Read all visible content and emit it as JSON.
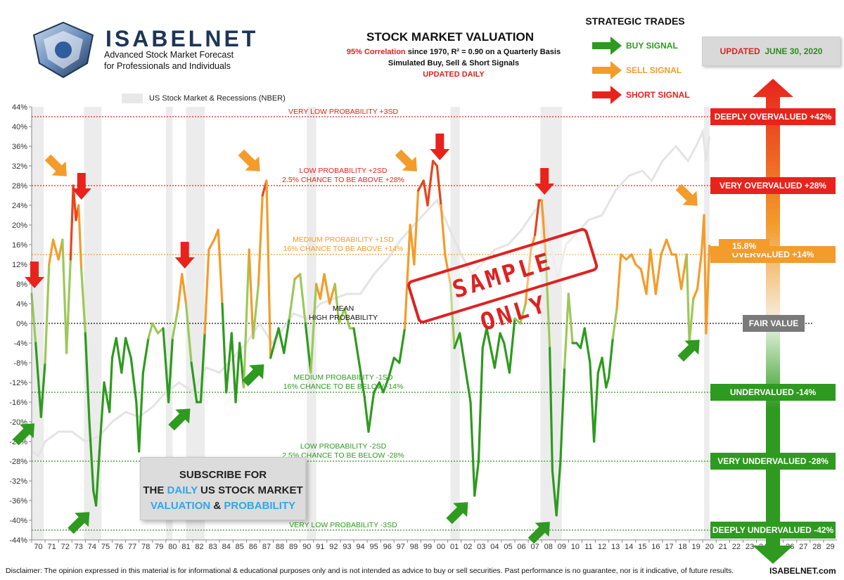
{
  "brand": {
    "name": "ISABELNET",
    "tagline_1": "Advanced Stock Market Forecast",
    "tagline_2": "for Professionals and Individuals"
  },
  "header": {
    "title": "STOCK MARKET VALUATION",
    "corr_red": "95% Correlation",
    "corr_rest": " since 1970, R² = 0.90 on a Quarterly Basis",
    "line2": "Simulated Buy, Sell & Short Signals",
    "line3": "UPDATED DAILY"
  },
  "strategic": {
    "title": "STRATEGIC TRADES",
    "buy": "BUY SIGNAL",
    "sell": "SELL SIGNAL",
    "short": "SHORT SIGNAL"
  },
  "updated": {
    "prefix": "UPDATED",
    "date": "JUNE 30, 2020"
  },
  "nber_label": "US Stock Market & Recessions (NBER)",
  "subscribe": {
    "line1": "SUBSCRIBE FOR",
    "the": "THE ",
    "daily": "DAILY",
    "us_stock": " US STOCK MARKET",
    "valuation": "VALUATION",
    "amp": " & ",
    "probability": "PROBABILITY"
  },
  "stamp": "SAMPLE ONLY",
  "disclaimer": "Disclaimer: The opinion expressed in this material is for informational & educational purposes only and is not intended as advice to buy or sell securities. Past performance is no guarantee, nor is it indicative, of future results.",
  "site": "ISABELNET.com",
  "current_value": "15.8%",
  "colors": {
    "buy": "#2e9a1f",
    "sell": "#f39c2b",
    "short": "#e8231c",
    "fair": "#7a7a7a",
    "market_line": "#e4e4e4",
    "recession": "#ececec"
  },
  "chart_data": {
    "type": "line",
    "ylim": [
      -44,
      44
    ],
    "y_ticks": [
      "44%",
      "40%",
      "36%",
      "32%",
      "28%",
      "24%",
      "20%",
      "16%",
      "12%",
      "8%",
      "4%",
      "0%",
      "-4%",
      "-8%",
      "-12%",
      "-16%",
      "-20%",
      "-24%",
      "-28%",
      "-32%",
      "-36%",
      "-40%",
      "-44%"
    ],
    "x_ticks": [
      "70",
      "71",
      "72",
      "73",
      "74",
      "75",
      "76",
      "77",
      "78",
      "79",
      "80",
      "81",
      "82",
      "83",
      "84",
      "85",
      "86",
      "87",
      "88",
      "89",
      "90",
      "91",
      "92",
      "93",
      "94",
      "95",
      "96",
      "97",
      "98",
      "99",
      "00",
      "01",
      "02",
      "03",
      "04",
      "05",
      "06",
      "07",
      "08",
      "09",
      "10",
      "11",
      "12",
      "13",
      "14",
      "15",
      "16",
      "17",
      "18",
      "19",
      "20",
      "21",
      "22",
      "23",
      "24",
      "25",
      "26",
      "27",
      "28",
      "29"
    ],
    "xlim": [
      1970,
      2030
    ],
    "recessions": [
      [
        1970.0,
        1970.9
      ],
      [
        1973.9,
        1975.2
      ],
      [
        1980.0,
        1980.5
      ],
      [
        1981.5,
        1982.9
      ],
      [
        1990.5,
        1991.2
      ],
      [
        2001.2,
        2001.9
      ],
      [
        2007.9,
        2009.5
      ],
      [
        2020.1,
        2020.5
      ]
    ],
    "reference_lines": [
      {
        "y": 42,
        "label": "VERY LOW PROBABILITY +3SD",
        "color": "#e8231c"
      },
      {
        "y": 28,
        "label": "LOW PROBABILITY +2SD",
        "label2": "2.5% CHANCE TO BE ABOVE +28%",
        "color": "#e8231c"
      },
      {
        "y": 14,
        "label": "MEDIUM PROBABILITY +1SD",
        "label2": "16% CHANCE TO BE ABOVE +14%",
        "color": "#f39c2b"
      },
      {
        "y": 0,
        "label": "MEAN",
        "label2": "HIGH PROBABILITY",
        "color": "#111111"
      },
      {
        "y": -14,
        "label": "MEDIUM PROBABILITY -1SD",
        "label2": "16% CHANCE TO BE BELOW -14%",
        "color": "#2e9a1f"
      },
      {
        "y": -28,
        "label": "LOW PROBABILITY -2SD",
        "label2": "2.5% CHANCE TO BE BELOW -28%",
        "color": "#2e9a1f"
      },
      {
        "y": -42,
        "label": "VERY LOW PROBABILITY -3SD",
        "color": "#2e9a1f"
      }
    ],
    "valuation_labels": [
      {
        "y": 42,
        "label": "DEEPLY OVERVALUED +42%",
        "color": "#e8231c"
      },
      {
        "y": 28,
        "label": "VERY OVERVALUED +28%",
        "color": "#e8231c"
      },
      {
        "y": 14,
        "label": "OVERVALUED +14%",
        "color": "#f39c2b"
      },
      {
        "y": 0,
        "label": "FAIR VALUE",
        "color": "#7a7a7a"
      },
      {
        "y": -14,
        "label": "UNDERVALUED -14%",
        "color": "#2e9a1f"
      },
      {
        "y": -28,
        "label": "VERY UNDERVALUED -28%",
        "color": "#2e9a1f"
      },
      {
        "y": -42,
        "label": "DEEPLY UNDERVALUED -42%",
        "color": "#2e9a1f"
      }
    ],
    "series": [
      {
        "name": "Valuation",
        "points": [
          [
            1970.0,
            6
          ],
          [
            1970.3,
            -4
          ],
          [
            1970.7,
            -19
          ],
          [
            1971.0,
            -8
          ],
          [
            1971.3,
            12
          ],
          [
            1971.6,
            17
          ],
          [
            1972.0,
            13
          ],
          [
            1972.3,
            17
          ],
          [
            1972.6,
            -6
          ],
          [
            1972.9,
            13
          ],
          [
            1973.1,
            28
          ],
          [
            1973.3,
            21
          ],
          [
            1973.5,
            24
          ],
          [
            1973.7,
            11
          ],
          [
            1974.0,
            -2
          ],
          [
            1974.3,
            -20
          ],
          [
            1974.6,
            -34
          ],
          [
            1974.8,
            -37
          ],
          [
            1975.1,
            -24
          ],
          [
            1975.4,
            -12
          ],
          [
            1975.8,
            -18
          ],
          [
            1976.0,
            -7
          ],
          [
            1976.3,
            -3
          ],
          [
            1976.7,
            -10
          ],
          [
            1977.0,
            -3
          ],
          [
            1977.4,
            -7
          ],
          [
            1977.8,
            -16
          ],
          [
            1978.0,
            -26
          ],
          [
            1978.3,
            -10
          ],
          [
            1978.7,
            -3
          ],
          [
            1979.0,
            0
          ],
          [
            1979.4,
            -2
          ],
          [
            1979.8,
            -1
          ],
          [
            1980.2,
            -16
          ],
          [
            1980.5,
            -3
          ],
          [
            1980.9,
            3
          ],
          [
            1981.2,
            10
          ],
          [
            1981.5,
            4
          ],
          [
            1981.9,
            -8
          ],
          [
            1982.3,
            -16
          ],
          [
            1982.6,
            -16
          ],
          [
            1982.9,
            -2
          ],
          [
            1983.2,
            15
          ],
          [
            1983.6,
            17
          ],
          [
            1983.9,
            19
          ],
          [
            1984.2,
            4
          ],
          [
            1984.5,
            -14
          ],
          [
            1984.9,
            -2
          ],
          [
            1985.2,
            -16
          ],
          [
            1985.5,
            -4
          ],
          [
            1985.8,
            -13
          ],
          [
            1986.2,
            15
          ],
          [
            1986.5,
            -3
          ],
          [
            1986.9,
            8
          ],
          [
            1987.2,
            26
          ],
          [
            1987.5,
            29
          ],
          [
            1987.8,
            -7
          ],
          [
            1988.0,
            -5
          ],
          [
            1988.4,
            -1
          ],
          [
            1988.8,
            -6
          ],
          [
            1989.2,
            1
          ],
          [
            1989.6,
            9
          ],
          [
            1990.0,
            10
          ],
          [
            1990.4,
            0
          ],
          [
            1990.8,
            -10
          ],
          [
            1991.2,
            8
          ],
          [
            1991.5,
            5
          ],
          [
            1991.8,
            10
          ],
          [
            1992.2,
            4
          ],
          [
            1992.6,
            8
          ],
          [
            1992.9,
            0
          ],
          [
            1993.3,
            3
          ],
          [
            1993.7,
            -1
          ],
          [
            1994.0,
            -1
          ],
          [
            1994.4,
            -8
          ],
          [
            1994.8,
            -15
          ],
          [
            1995.1,
            -22
          ],
          [
            1995.5,
            -14
          ],
          [
            1995.9,
            -12
          ],
          [
            1996.2,
            -14
          ],
          [
            1996.6,
            -11
          ],
          [
            1997.0,
            -7
          ],
          [
            1997.4,
            -8
          ],
          [
            1997.8,
            -1
          ],
          [
            1998.2,
            20
          ],
          [
            1998.5,
            12
          ],
          [
            1998.8,
            27
          ],
          [
            1999.2,
            29
          ],
          [
            1999.5,
            24
          ],
          [
            1999.9,
            33
          ],
          [
            2000.2,
            32
          ],
          [
            2000.5,
            24
          ],
          [
            2000.8,
            14
          ],
          [
            2001.2,
            8
          ],
          [
            2001.5,
            -5
          ],
          [
            2001.9,
            -2
          ],
          [
            2002.3,
            -9
          ],
          [
            2002.7,
            -16
          ],
          [
            2003.0,
            -35
          ],
          [
            2003.3,
            -28
          ],
          [
            2003.6,
            -5
          ],
          [
            2003.9,
            -1
          ],
          [
            2004.2,
            -5
          ],
          [
            2004.5,
            -9
          ],
          [
            2004.9,
            -2
          ],
          [
            2005.2,
            -4
          ],
          [
            2005.6,
            -10
          ],
          [
            2006.0,
            1
          ],
          [
            2006.4,
            0
          ],
          [
            2006.8,
            4
          ],
          [
            2007.2,
            15
          ],
          [
            2007.5,
            18
          ],
          [
            2007.8,
            25
          ],
          [
            2008.0,
            25
          ],
          [
            2008.3,
            14
          ],
          [
            2008.6,
            -5
          ],
          [
            2008.8,
            -30
          ],
          [
            2009.1,
            -39
          ],
          [
            2009.4,
            -28
          ],
          [
            2009.7,
            -9
          ],
          [
            2010.0,
            6
          ],
          [
            2010.3,
            -4
          ],
          [
            2010.6,
            -4
          ],
          [
            2010.9,
            -5
          ],
          [
            2011.2,
            -1
          ],
          [
            2011.6,
            -8
          ],
          [
            2011.9,
            -24
          ],
          [
            2012.2,
            -10
          ],
          [
            2012.5,
            -7
          ],
          [
            2012.8,
            -13
          ],
          [
            2013.0,
            -11
          ],
          [
            2013.3,
            -3
          ],
          [
            2013.6,
            3
          ],
          [
            2013.9,
            14
          ],
          [
            2014.3,
            13
          ],
          [
            2014.7,
            14
          ],
          [
            2015.0,
            12
          ],
          [
            2015.4,
            11
          ],
          [
            2015.8,
            6
          ],
          [
            2016.1,
            15
          ],
          [
            2016.5,
            6
          ],
          [
            2016.9,
            14
          ],
          [
            2017.3,
            17
          ],
          [
            2017.7,
            14
          ],
          [
            2018.0,
            14
          ],
          [
            2018.4,
            7
          ],
          [
            2018.8,
            14
          ],
          [
            2019.0,
            -4
          ],
          [
            2019.3,
            5
          ],
          [
            2019.6,
            7
          ],
          [
            2019.9,
            14
          ],
          [
            2020.1,
            22
          ],
          [
            2020.25,
            -2
          ],
          [
            2020.5,
            15.8
          ]
        ]
      },
      {
        "name": "US Stock Market",
        "points": [
          [
            1970.0,
            -26
          ],
          [
            1970.5,
            -27
          ],
          [
            1971.0,
            -24
          ],
          [
            1972.0,
            -22
          ],
          [
            1973.0,
            -22
          ],
          [
            1974.0,
            -24
          ],
          [
            1975.0,
            -23
          ],
          [
            1976.0,
            -20
          ],
          [
            1977.0,
            -18
          ],
          [
            1978.0,
            -19
          ],
          [
            1979.0,
            -17
          ],
          [
            1980.0,
            -14
          ],
          [
            1981.0,
            -12
          ],
          [
            1982.0,
            -14
          ],
          [
            1983.0,
            -9
          ],
          [
            1984.0,
            -10
          ],
          [
            1985.0,
            -7
          ],
          [
            1986.0,
            -4
          ],
          [
            1987.0,
            0
          ],
          [
            1987.9,
            -4
          ],
          [
            1988.5,
            -2
          ],
          [
            1989.5,
            2
          ],
          [
            1990.5,
            1
          ],
          [
            1991.5,
            4
          ],
          [
            1992.5,
            5
          ],
          [
            1993.5,
            6
          ],
          [
            1994.5,
            6
          ],
          [
            1995.5,
            10
          ],
          [
            1996.5,
            13
          ],
          [
            1997.5,
            17
          ],
          [
            1998.5,
            20
          ],
          [
            1999.5,
            23
          ],
          [
            2000.2,
            25
          ],
          [
            2001.0,
            20
          ],
          [
            2002.0,
            14
          ],
          [
            2002.8,
            10
          ],
          [
            2003.5,
            12
          ],
          [
            2004.5,
            15
          ],
          [
            2005.5,
            16
          ],
          [
            2006.5,
            19
          ],
          [
            2007.5,
            23
          ],
          [
            2008.0,
            24
          ],
          [
            2008.8,
            14
          ],
          [
            2009.2,
            9
          ],
          [
            2009.8,
            16
          ],
          [
            2010.5,
            18
          ],
          [
            2011.5,
            21
          ],
          [
            2012.5,
            22
          ],
          [
            2013.5,
            27
          ],
          [
            2014.5,
            30
          ],
          [
            2015.5,
            31
          ],
          [
            2016.2,
            29
          ],
          [
            2017.0,
            33
          ],
          [
            2018.0,
            36
          ],
          [
            2018.9,
            33
          ],
          [
            2019.5,
            36
          ],
          [
            2020.0,
            39
          ],
          [
            2020.25,
            33
          ],
          [
            2020.5,
            38
          ]
        ]
      }
    ],
    "signals": {
      "buy": [
        [
          1970.7,
          -19
        ],
        [
          1974.8,
          -37
        ],
        [
          1982.3,
          -16
        ],
        [
          1987.8,
          -7
        ],
        [
          2003.0,
          -35
        ],
        [
          2009.1,
          -39
        ],
        [
          2020.25,
          -2
        ]
      ],
      "sell": [
        [
          1973.1,
          28
        ],
        [
          1987.5,
          29
        ],
        [
          1999.2,
          29
        ],
        [
          2020.1,
          22
        ]
      ],
      "short": [
        [
          1970.0,
          6
        ],
        [
          1973.5,
          24
        ],
        [
          1981.2,
          10
        ],
        [
          2000.2,
          32
        ],
        [
          2008.0,
          25
        ]
      ]
    }
  }
}
